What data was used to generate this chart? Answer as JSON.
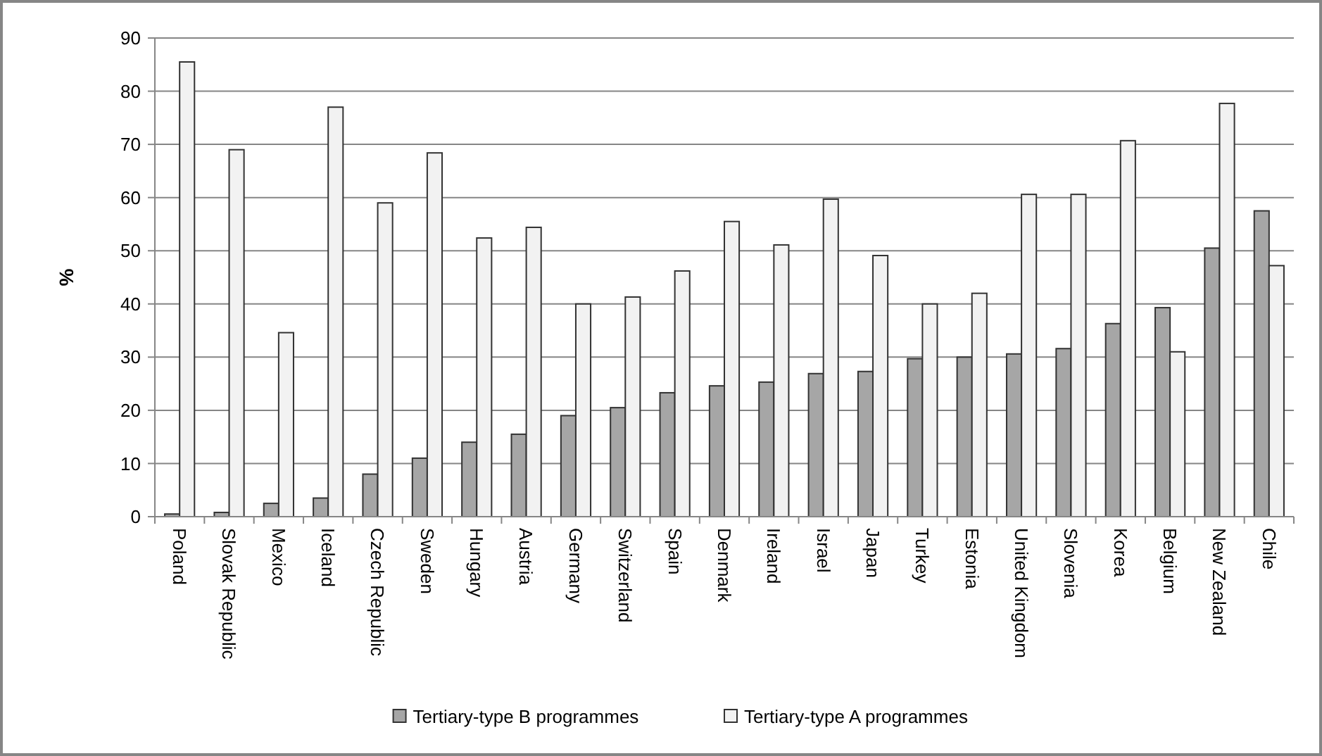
{
  "chart_data": {
    "type": "bar",
    "ylabel": "%",
    "categories": [
      "Poland",
      "Slovak Republic",
      "Mexico",
      "Iceland",
      "Czech Republic",
      "Sweden",
      "Hungary",
      "Austria",
      "Germany",
      "Switzerland",
      "Spain",
      "Denmark",
      "Ireland",
      "Israel",
      "Japan",
      "Turkey",
      "Estonia",
      "United Kingdom",
      "Slovenia",
      "Korea",
      "Belgium",
      "New Zealand",
      "Chile"
    ],
    "series": [
      {
        "name": "Tertiary-type B programmes",
        "color": "#a6a6a6",
        "values": [
          0.5,
          0.8,
          2.5,
          3.5,
          8,
          11,
          14,
          15.5,
          19,
          20.5,
          23.3,
          24.6,
          25.3,
          26.9,
          27.3,
          29.7,
          30,
          30.6,
          31.6,
          36.3,
          39.3,
          50.5,
          57.5
        ]
      },
      {
        "name": "Tertiary-type A programmes",
        "color": "#f2f2f2",
        "values": [
          85.5,
          69,
          34.6,
          77,
          59,
          68.4,
          52.4,
          54.4,
          40,
          41.3,
          46.2,
          55.5,
          51.1,
          59.7,
          49.1,
          40,
          42,
          60.6,
          60.6,
          70.7,
          31,
          77.7,
          47.2
        ]
      }
    ],
    "ylim": [
      0,
      90
    ],
    "yticks": [
      0,
      10,
      20,
      30,
      40,
      50,
      60,
      70,
      80,
      90
    ],
    "grid": "y",
    "legend": "bottom"
  }
}
